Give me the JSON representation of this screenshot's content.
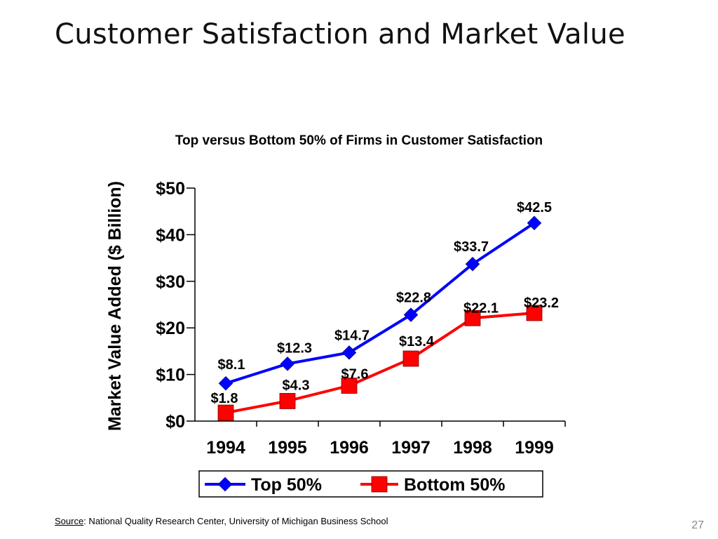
{
  "slide": {
    "title": "Customer Satisfaction and Market Value",
    "source_label": "Source",
    "source_text": ":  National Quality Research Center, University of Michigan Business School",
    "page_number": "27"
  },
  "chart_data": {
    "type": "line",
    "title": "Top versus Bottom 50% of Firms in Customer Satisfaction",
    "xlabel": "",
    "ylabel": "Market Value Added ($ Billion)",
    "categories": [
      "1994",
      "1995",
      "1996",
      "1997",
      "1998",
      "1999"
    ],
    "ylim": [
      0,
      50
    ],
    "yticks": [
      0,
      10,
      20,
      30,
      40,
      50
    ],
    "ytick_labels": [
      "$0",
      "$10",
      "$20",
      "$30",
      "$40",
      "$50"
    ],
    "grid": false,
    "legend_position": "bottom",
    "series": [
      {
        "name": "Top 50%",
        "color": "#0000ff",
        "marker": "diamond",
        "values": [
          8.1,
          12.3,
          14.7,
          22.8,
          33.7,
          42.5
        ],
        "labels": [
          "$8.1",
          "$12.3",
          "$14.7",
          "$22.8",
          "$33.7",
          "$42.5"
        ]
      },
      {
        "name": "Bottom 50%",
        "color": "#ff0000",
        "marker": "square",
        "values": [
          1.8,
          4.3,
          7.6,
          13.4,
          22.1,
          23.2
        ],
        "labels": [
          "$1.8",
          "$4.3",
          "$7.6",
          "$13.4",
          "$22.1",
          "$23.2"
        ]
      }
    ]
  }
}
